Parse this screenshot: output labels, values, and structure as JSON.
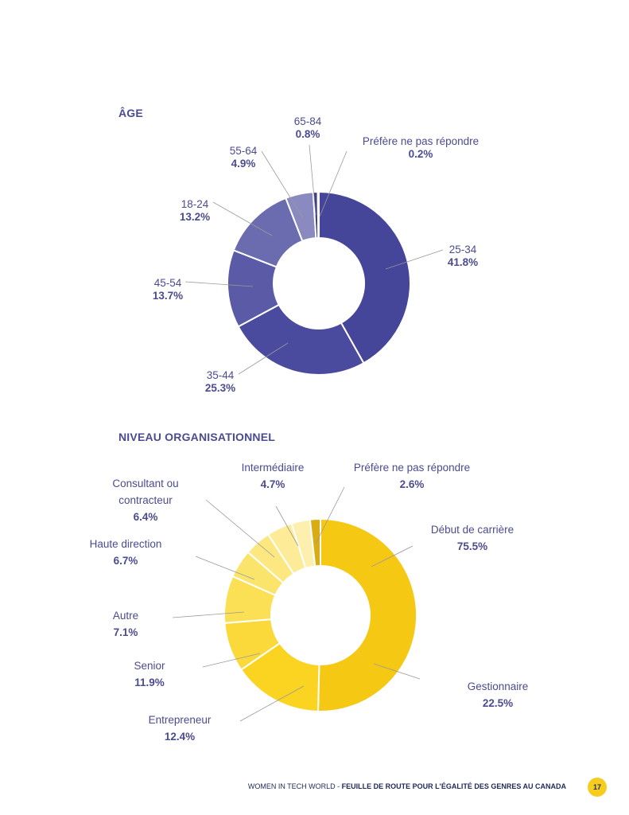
{
  "chart_data": [
    {
      "type": "pie",
      "variant": "donut",
      "title": "ÂGE",
      "categories": [
        "25-34",
        "35-44",
        "45-54",
        "18-24",
        "55-64",
        "65-84",
        "Préfère ne pas répondre"
      ],
      "values": [
        41.8,
        25.3,
        13.7,
        13.2,
        4.9,
        0.8,
        0.2
      ],
      "labels": [
        {
          "name": "25-34",
          "pct": "41.8%"
        },
        {
          "name": "35-44",
          "pct": "25.3%"
        },
        {
          "name": "45-54",
          "pct": "13.7%"
        },
        {
          "name": "18-24",
          "pct": "13.2%"
        },
        {
          "name": "55-64",
          "pct": "4.9%"
        },
        {
          "name": "65-84",
          "pct": "0.8%"
        },
        {
          "name": "Préfère ne pas répondre",
          "pct": "0.2%"
        }
      ],
      "colors": [
        "#45459a",
        "#4a4a9e",
        "#5a5aa7",
        "#6b6bb0",
        "#8a8ac0",
        "#3d3d8a",
        "#2f2f6f"
      ],
      "unit": "%"
    },
    {
      "type": "pie",
      "variant": "donut",
      "title": "NIVEAU ORGANISATIONNEL",
      "categories": [
        "Début de carrière",
        "Gestionnaire",
        "Entrepreneur",
        "Senior",
        "Autre",
        "Haute direction",
        "Consultant ou contracteur",
        "Intermédiaire",
        "Préfère ne pas répondre"
      ],
      "values": [
        75.5,
        22.5,
        12.4,
        11.9,
        7.1,
        6.7,
        6.4,
        4.7,
        2.6
      ],
      "labels": [
        {
          "name": "Début de carrière",
          "pct": "75.5%"
        },
        {
          "name": "Gestionnaire",
          "pct": "22.5%"
        },
        {
          "name": "Entrepreneur",
          "pct": "12.4%"
        },
        {
          "name": "Senior",
          "pct": "11.9%"
        },
        {
          "name": "Autre",
          "pct": "7.1%"
        },
        {
          "name": "Haute direction",
          "pct": "6.7%"
        },
        {
          "name": "Consultant ou",
          "name2": "contracteur",
          "pct": "6.4%"
        },
        {
          "name": "Intermédiaire",
          "pct": "4.7%"
        },
        {
          "name": "Préfère ne pas répondre",
          "pct": "2.6%"
        }
      ],
      "colors": [
        "#f5c814",
        "#fbd321",
        "#fbd93a",
        "#fbe056",
        "#fbe46c",
        "#fce781",
        "#fdeb97",
        "#fdefae",
        "#d9ac14"
      ],
      "unit": "%"
    }
  ],
  "footer": {
    "left": "WOMEN IN TECH WORLD - ",
    "right": "FEUILLE DE ROUTE POUR L'ÉGALITÉ DES GENRES AU CANADA",
    "page_number": "17"
  }
}
